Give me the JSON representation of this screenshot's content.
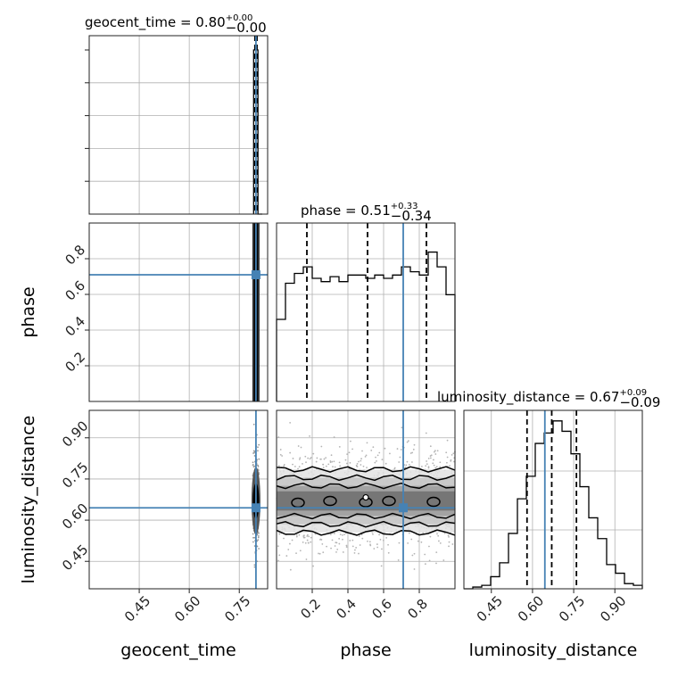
{
  "chart_data": {
    "type": "corner",
    "parameters": [
      "geocent_time",
      "phase",
      "luminosity_distance"
    ],
    "truths": {
      "geocent_time": 0.8,
      "phase": 0.71,
      "luminosity_distance": 0.645
    },
    "ranges": {
      "geocent_time": [
        0.3,
        0.835
      ],
      "phase": [
        0.0,
        1.0
      ],
      "luminosity_distance": [
        0.35,
        1.0
      ]
    },
    "grid": true,
    "panels": {
      "geocent_time": {
        "title_name": "geocent_time",
        "median": "0.80",
        "plus": "+0.00",
        "minus": "−0.00",
        "quantiles": [
          0.797,
          0.8,
          0.803
        ],
        "bins": [
          0.793,
          0.806,
          0.819
        ],
        "counts": [
          1.0,
          0.0
        ]
      },
      "phase": {
        "title_name": "phase",
        "median": "0.51",
        "plus": "+0.33",
        "minus": "−0.34",
        "quantiles": [
          0.17,
          0.51,
          0.84
        ],
        "bins": [
          0.0,
          0.05,
          0.1,
          0.15,
          0.2,
          0.25,
          0.3,
          0.35,
          0.4,
          0.45,
          0.5,
          0.55,
          0.6,
          0.65,
          0.7,
          0.75,
          0.8,
          0.85,
          0.9,
          0.95,
          1.0
        ],
        "counts": [
          0.5,
          0.72,
          0.78,
          0.82,
          0.75,
          0.73,
          0.76,
          0.73,
          0.77,
          0.77,
          0.75,
          0.77,
          0.75,
          0.77,
          0.82,
          0.79,
          0.77,
          0.91,
          0.82,
          0.65
        ]
      },
      "luminosity_distance": {
        "title_name": "luminosity_distance",
        "median": "0.67",
        "plus": "+0.09",
        "minus": "−0.09",
        "quantiles": [
          0.58,
          0.67,
          0.76
        ],
        "bins": [
          0.35,
          0.3825,
          0.415,
          0.4475,
          0.48,
          0.5125,
          0.545,
          0.5775,
          0.61,
          0.6425,
          0.675,
          0.7075,
          0.74,
          0.7725,
          0.805,
          0.8375,
          0.87,
          0.9025,
          0.935,
          0.9675,
          1.0
        ],
        "counts": [
          0.0,
          0.01,
          0.02,
          0.07,
          0.15,
          0.32,
          0.52,
          0.65,
          0.84,
          0.9,
          0.97,
          0.91,
          0.78,
          0.59,
          0.41,
          0.29,
          0.14,
          0.09,
          0.03,
          0.02
        ]
      }
    },
    "ticks": {
      "geocent_time": [
        "0.45",
        "0.60",
        "0.75"
      ],
      "phase": [
        "0.2",
        "0.4",
        "0.6",
        "0.8"
      ],
      "luminosity_distance": [
        "0.45",
        "0.60",
        "0.75",
        "0.90"
      ]
    },
    "axis_labels": {
      "x": [
        "geocent_time",
        "phase",
        "luminosity_distance"
      ],
      "y": [
        "phase",
        "luminosity_distance"
      ]
    },
    "joint": {
      "phase_vs_luminosity_distance": {
        "center": [
          0.5,
          0.67
        ],
        "contour_half_widths": [
          0.035,
          0.055,
          0.085,
          0.115
        ],
        "note": "flat in phase, gaussian in luminosity_distance"
      }
    }
  }
}
